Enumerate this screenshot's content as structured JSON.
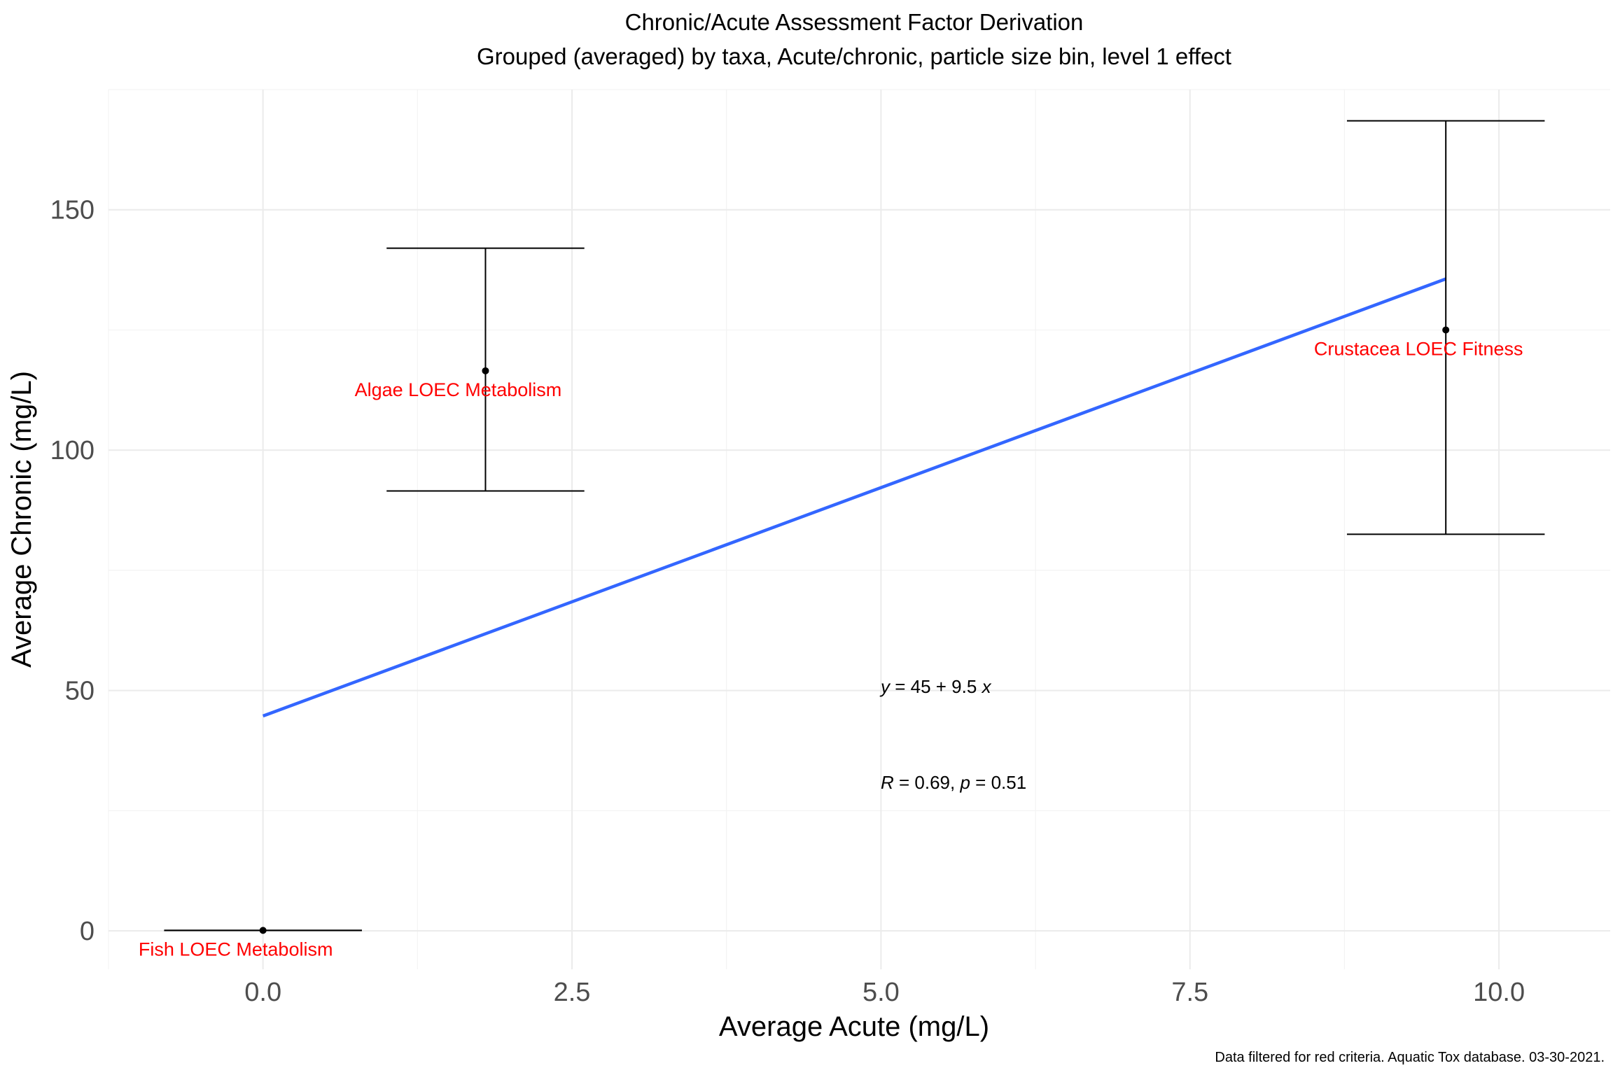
{
  "chart_data": {
    "type": "scatter",
    "title": "Chronic/Acute Assessment Factor Derivation",
    "subtitle": "Grouped (averaged) by taxa, Acute/chronic, particle size bin, level 1 effect",
    "xlabel": "Average Acute (mg/L)",
    "ylabel": "Average Chronic (mg/L)",
    "caption": "Data filtered for red criteria. Aquatic Tox database. 03-30-2021.",
    "xlim": [
      -1.25,
      10.9
    ],
    "ylim": [
      -8,
      175
    ],
    "x_ticks": [
      0.0,
      2.5,
      5.0,
      7.5,
      10.0
    ],
    "x_tick_labels": [
      "0.0",
      "2.5",
      "5.0",
      "7.5",
      "10.0"
    ],
    "y_ticks": [
      0,
      50,
      100,
      150
    ],
    "y_tick_labels": [
      "0",
      "50",
      "100",
      "150"
    ],
    "grid": true,
    "points": [
      {
        "label": "Fish LOEC Metabolism",
        "x": 0.0,
        "y": 0.1,
        "y_low": 0.1,
        "y_high": 0.1,
        "x_low": -0.8,
        "x_high": 0.8
      },
      {
        "label": "Algae LOEC Metabolism",
        "x": 1.8,
        "y": 116.5,
        "y_low": 91.5,
        "y_high": 142.0,
        "x_low": 1.0,
        "x_high": 2.6
      },
      {
        "label": "Crustacea LOEC Fitness",
        "x": 9.57,
        "y": 125.0,
        "y_low": 82.5,
        "y_high": 168.5,
        "x_low": 8.77,
        "x_high": 10.37
      }
    ],
    "fit": {
      "intercept": 44.7,
      "slope": 9.5,
      "x_range": [
        0.0,
        9.57
      ],
      "color": "#3366ff"
    },
    "annotations": {
      "equation": {
        "y_symbol": "y",
        "y_rest": " = 45 + 9.5 ",
        "x_symbol": "x"
      },
      "stats": {
        "r_symbol": "R",
        "r_value": " = 0.69, ",
        "p_symbol": "p",
        "p_value": " = 0.51"
      }
    },
    "colors": {
      "label": "#ff0000",
      "fit": "#3366ff",
      "grid_major": "#ebebeb",
      "grid_minor": "#f3f3f3"
    }
  }
}
